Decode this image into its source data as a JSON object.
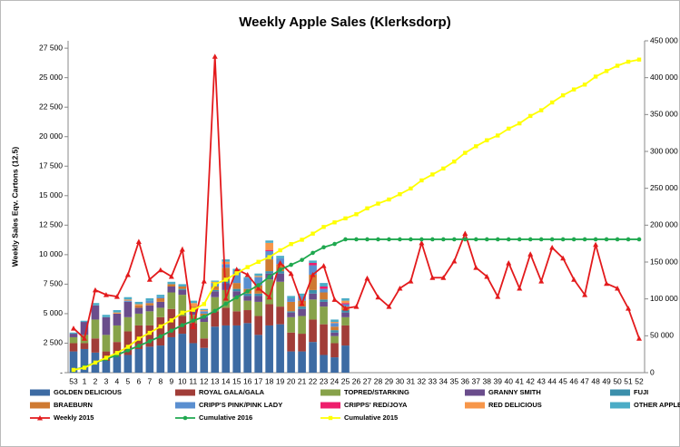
{
  "chart_data": {
    "type": "bar",
    "stacked": true,
    "title": "Weekly Apple Sales (Klerksdorp)",
    "y_label": "Weekly Sales Eqv. Cartons (12.5)",
    "categories": [
      "53",
      "1",
      "2",
      "3",
      "4",
      "5",
      "6",
      "7",
      "8",
      "9",
      "10",
      "11",
      "12",
      "13",
      "14",
      "15",
      "16",
      "17",
      "18",
      "19",
      "20",
      "21",
      "22",
      "23",
      "24",
      "25",
      "26",
      "27",
      "28",
      "29",
      "30",
      "31",
      "32",
      "33",
      "34",
      "35",
      "36",
      "37",
      "38",
      "39",
      "40",
      "41",
      "42",
      "43",
      "44",
      "45",
      "46",
      "47",
      "48",
      "49",
      "50",
      "51",
      "52"
    ],
    "ylim": [
      0,
      28125
    ],
    "yticks": [
      {
        "value": 0,
        "label": "-"
      },
      {
        "value": 2500,
        "label": "2 500"
      },
      {
        "value": 5000,
        "label": "5 000"
      },
      {
        "value": 7500,
        "label": "7 500"
      },
      {
        "value": 10000,
        "label": "10 000"
      },
      {
        "value": 12500,
        "label": "12 500"
      },
      {
        "value": 15000,
        "label": "15 000"
      },
      {
        "value": 17500,
        "label": "17 500"
      },
      {
        "value": 20000,
        "label": "20 000"
      },
      {
        "value": 22500,
        "label": "22 500"
      },
      {
        "value": 25000,
        "label": "25 000"
      },
      {
        "value": 27500,
        "label": "27 500"
      }
    ],
    "y2lim": [
      0,
      450000
    ],
    "y2ticks": [
      0,
      {
        "value": 50000,
        "label": "50 000"
      },
      {
        "value": 100000,
        "label": "100 000"
      },
      {
        "value": 150000,
        "label": "150 000"
      },
      {
        "value": 200000,
        "label": "200 000"
      },
      {
        "value": 250000,
        "label": "250 000"
      },
      {
        "value": 300000,
        "label": "300 000"
      },
      {
        "value": 350000,
        "label": "350 000"
      },
      {
        "value": 400000,
        "label": "400 000"
      },
      {
        "value": 450000,
        "label": "450 000"
      }
    ],
    "grid": false,
    "legend": "bottom",
    "series": [
      {
        "name": "GOLDEN DELICIOUS",
        "type": "bar",
        "color": "#3d6ba3",
        "values": [
          1800,
          2000,
          1700,
          1000,
          1400,
          1500,
          2000,
          2200,
          2300,
          3000,
          3300,
          2500,
          2100,
          3900,
          4000,
          4000,
          4200,
          3200,
          4000,
          4100,
          1800,
          1800,
          2600,
          1500,
          1300,
          2300,
          null,
          null,
          null,
          null,
          null,
          null,
          null,
          null,
          null,
          null,
          null,
          null,
          null,
          null,
          null,
          null,
          null,
          null,
          null,
          null,
          null,
          null,
          null,
          null,
          null,
          null,
          null
        ]
      },
      {
        "name": "ROYAL GALA/GALA",
        "type": "bar",
        "color": "#a13d38",
        "values": [
          700,
          500,
          1200,
          800,
          1200,
          2000,
          2000,
          1800,
          2400,
          2400,
          1500,
          1700,
          800,
          1300,
          1500,
          1200,
          1100,
          1600,
          1800,
          1500,
          1600,
          1500,
          1900,
          2600,
          1200,
          1700,
          null,
          null,
          null,
          null,
          null,
          null,
          null,
          null,
          null,
          null,
          null,
          null,
          null,
          null,
          null,
          null,
          null,
          null,
          null,
          null,
          null,
          null,
          null,
          null,
          null,
          null,
          null
        ]
      },
      {
        "name": "TOPRED/STARKING",
        "type": "bar",
        "color": "#87a24a",
        "values": [
          500,
          700,
          1600,
          1400,
          1400,
          1200,
          1000,
          1200,
          800,
          1400,
          1800,
          700,
          1400,
          1200,
          1500,
          1200,
          800,
          1200,
          2100,
          2100,
          1300,
          1500,
          1700,
          1500,
          600,
          700,
          null,
          null,
          null,
          null,
          null,
          null,
          null,
          null,
          null,
          null,
          null,
          null,
          null,
          null,
          null,
          null,
          null,
          null,
          null,
          null,
          null,
          null,
          null,
          null,
          null,
          null,
          null
        ]
      },
      {
        "name": "GRANNY SMITH",
        "type": "bar",
        "color": "#6a4d8c",
        "values": [
          300,
          1100,
          1200,
          1500,
          1000,
          1300,
          500,
          500,
          500,
          500,
          400,
          400,
          400,
          500,
          600,
          500,
          400,
          500,
          500,
          700,
          400,
          600,
          500,
          400,
          300,
          400,
          null,
          null,
          null,
          null,
          null,
          null,
          null,
          null,
          null,
          null,
          null,
          null,
          null,
          null,
          null,
          null,
          null,
          null,
          null,
          null,
          null,
          null,
          null,
          null,
          null,
          null,
          null
        ]
      },
      {
        "name": "FUJI",
        "type": "bar",
        "color": "#3b8fab",
        "values": [
          0,
          0,
          0,
          0,
          0,
          0,
          0,
          0,
          0,
          0,
          100,
          0,
          100,
          100,
          200,
          200,
          200,
          200,
          200,
          200,
          100,
          200,
          300,
          200,
          200,
          200,
          null,
          null,
          null,
          null,
          null,
          null,
          null,
          null,
          null,
          null,
          null,
          null,
          null,
          null,
          null,
          null,
          null,
          null,
          null,
          null,
          null,
          null,
          null,
          null,
          null,
          null,
          null
        ]
      },
      {
        "name": "BRAEBURN",
        "type": "bar",
        "color": "#cf7a32",
        "values": [
          0,
          0,
          0,
          0,
          0,
          0,
          200,
          200,
          300,
          200,
          200,
          300,
          200,
          300,
          1100,
          500,
          400,
          700,
          1000,
          600,
          800,
          500,
          1300,
          600,
          300,
          300,
          null,
          null,
          null,
          null,
          null,
          null,
          null,
          null,
          null,
          null,
          null,
          null,
          null,
          null,
          null,
          null,
          null,
          null,
          null,
          null,
          null,
          null,
          null,
          null,
          null,
          null,
          null
        ]
      },
      {
        "name": "CRIPP'S PINK/PINK LADY",
        "type": "bar",
        "color": "#5a8fd0",
        "values": [
          0,
          0,
          0,
          0,
          0,
          100,
          0,
          200,
          100,
          0,
          0,
          0,
          200,
          300,
          300,
          1000,
          900,
          700,
          700,
          500,
          300,
          400,
          800,
          300,
          300,
          200,
          null,
          null,
          null,
          null,
          null,
          null,
          null,
          null,
          null,
          null,
          null,
          null,
          null,
          null,
          null,
          null,
          null,
          null,
          null,
          null,
          null,
          null,
          null,
          null,
          null,
          null,
          null
        ]
      },
      {
        "name": "CRIPPS' RED/JOYA",
        "type": "bar",
        "color": "#ee1d6c",
        "values": [
          0,
          0,
          0,
          0,
          0,
          0,
          0,
          0,
          0,
          0,
          0,
          0,
          0,
          0,
          0,
          0,
          0,
          0,
          100,
          0,
          0,
          0,
          200,
          200,
          0,
          100,
          null,
          null,
          null,
          null,
          null,
          null,
          null,
          null,
          null,
          null,
          null,
          null,
          null,
          null,
          null,
          null,
          null,
          null,
          null,
          null,
          null,
          null,
          null,
          null,
          null,
          null,
          null
        ]
      },
      {
        "name": "RED DELICIOUS",
        "type": "bar",
        "color": "#f7964a",
        "values": [
          0,
          0,
          0,
          0,
          100,
          100,
          100,
          0,
          0,
          0,
          0,
          300,
          100,
          100,
          200,
          0,
          0,
          100,
          600,
          0,
          0,
          0,
          0,
          0,
          100,
          200,
          null,
          null,
          null,
          null,
          null,
          null,
          null,
          null,
          null,
          null,
          null,
          null,
          null,
          null,
          null,
          null,
          null,
          null,
          null,
          null,
          null,
          null,
          null,
          null,
          null,
          null,
          null
        ]
      },
      {
        "name": "OTHER APPLES",
        "type": "bar",
        "color": "#4bacc6",
        "values": [
          100,
          100,
          200,
          200,
          200,
          200,
          200,
          200,
          200,
          200,
          200,
          200,
          100,
          100,
          200,
          200,
          100,
          200,
          200,
          200,
          200,
          200,
          200,
          300,
          200,
          200,
          null,
          null,
          null,
          null,
          null,
          null,
          null,
          null,
          null,
          null,
          null,
          null,
          null,
          null,
          null,
          null,
          null,
          null,
          null,
          null,
          null,
          null,
          null,
          null,
          null,
          null,
          null
        ]
      },
      {
        "name": "Weekly 2015",
        "type": "line",
        "marker": "triangle",
        "color": "#e31a1c",
        "values": [
          3760,
          2900,
          7000,
          6600,
          6450,
          8300,
          11100,
          7900,
          8700,
          8150,
          10450,
          3900,
          7750,
          26800,
          6300,
          8750,
          8300,
          7150,
          6400,
          9300,
          8400,
          5850,
          8300,
          9060,
          6200,
          5450,
          5600,
          8000,
          6400,
          5600,
          7150,
          7750,
          11000,
          8050,
          8050,
          9450,
          11800,
          8900,
          8150,
          6450,
          9300,
          7150,
          10050,
          7750,
          10600,
          9700,
          7900,
          6600,
          10850,
          7550,
          7150,
          5450,
          2900
        ]
      },
      {
        "name": "Cumulative 2016",
        "type": "line",
        "marker": "circle",
        "axis": "y2",
        "color": "#1fa84f",
        "values": [
          3400,
          7800,
          13700,
          18600,
          23900,
          30300,
          36300,
          42600,
          49200,
          56900,
          64400,
          70500,
          75900,
          83700,
          93300,
          102100,
          110200,
          118600,
          129800,
          139700,
          146200,
          152900,
          162400,
          170000,
          174500,
          180800,
          180800,
          180800,
          180800,
          180800,
          180800,
          180800,
          180800,
          180800,
          180800,
          180800,
          180800,
          180800,
          180800,
          180800,
          180800,
          180800,
          180800,
          180800,
          180800,
          180800,
          180800,
          180800,
          180800,
          180800,
          180800,
          180800,
          180800
        ]
      },
      {
        "name": "Cumulative 2015",
        "type": "line",
        "marker": "square",
        "axis": "y2",
        "color": "#ffff00",
        "values": [
          3760,
          6660,
          13660,
          20260,
          26710,
          35010,
          46110,
          54010,
          62710,
          70860,
          81310,
          85210,
          92960,
          119760,
          126060,
          134810,
          143110,
          150260,
          156660,
          165960,
          174360,
          180210,
          188510,
          197570,
          203770,
          209220,
          214820,
          222820,
          229220,
          234820,
          241970,
          249720,
          260720,
          268770,
          276820,
          286270,
          298070,
          306970,
          315120,
          321570,
          330870,
          338020,
          348070,
          355820,
          366420,
          376120,
          384020,
          390620,
          401470,
          409020,
          416170,
          421620,
          424520
        ]
      }
    ]
  }
}
